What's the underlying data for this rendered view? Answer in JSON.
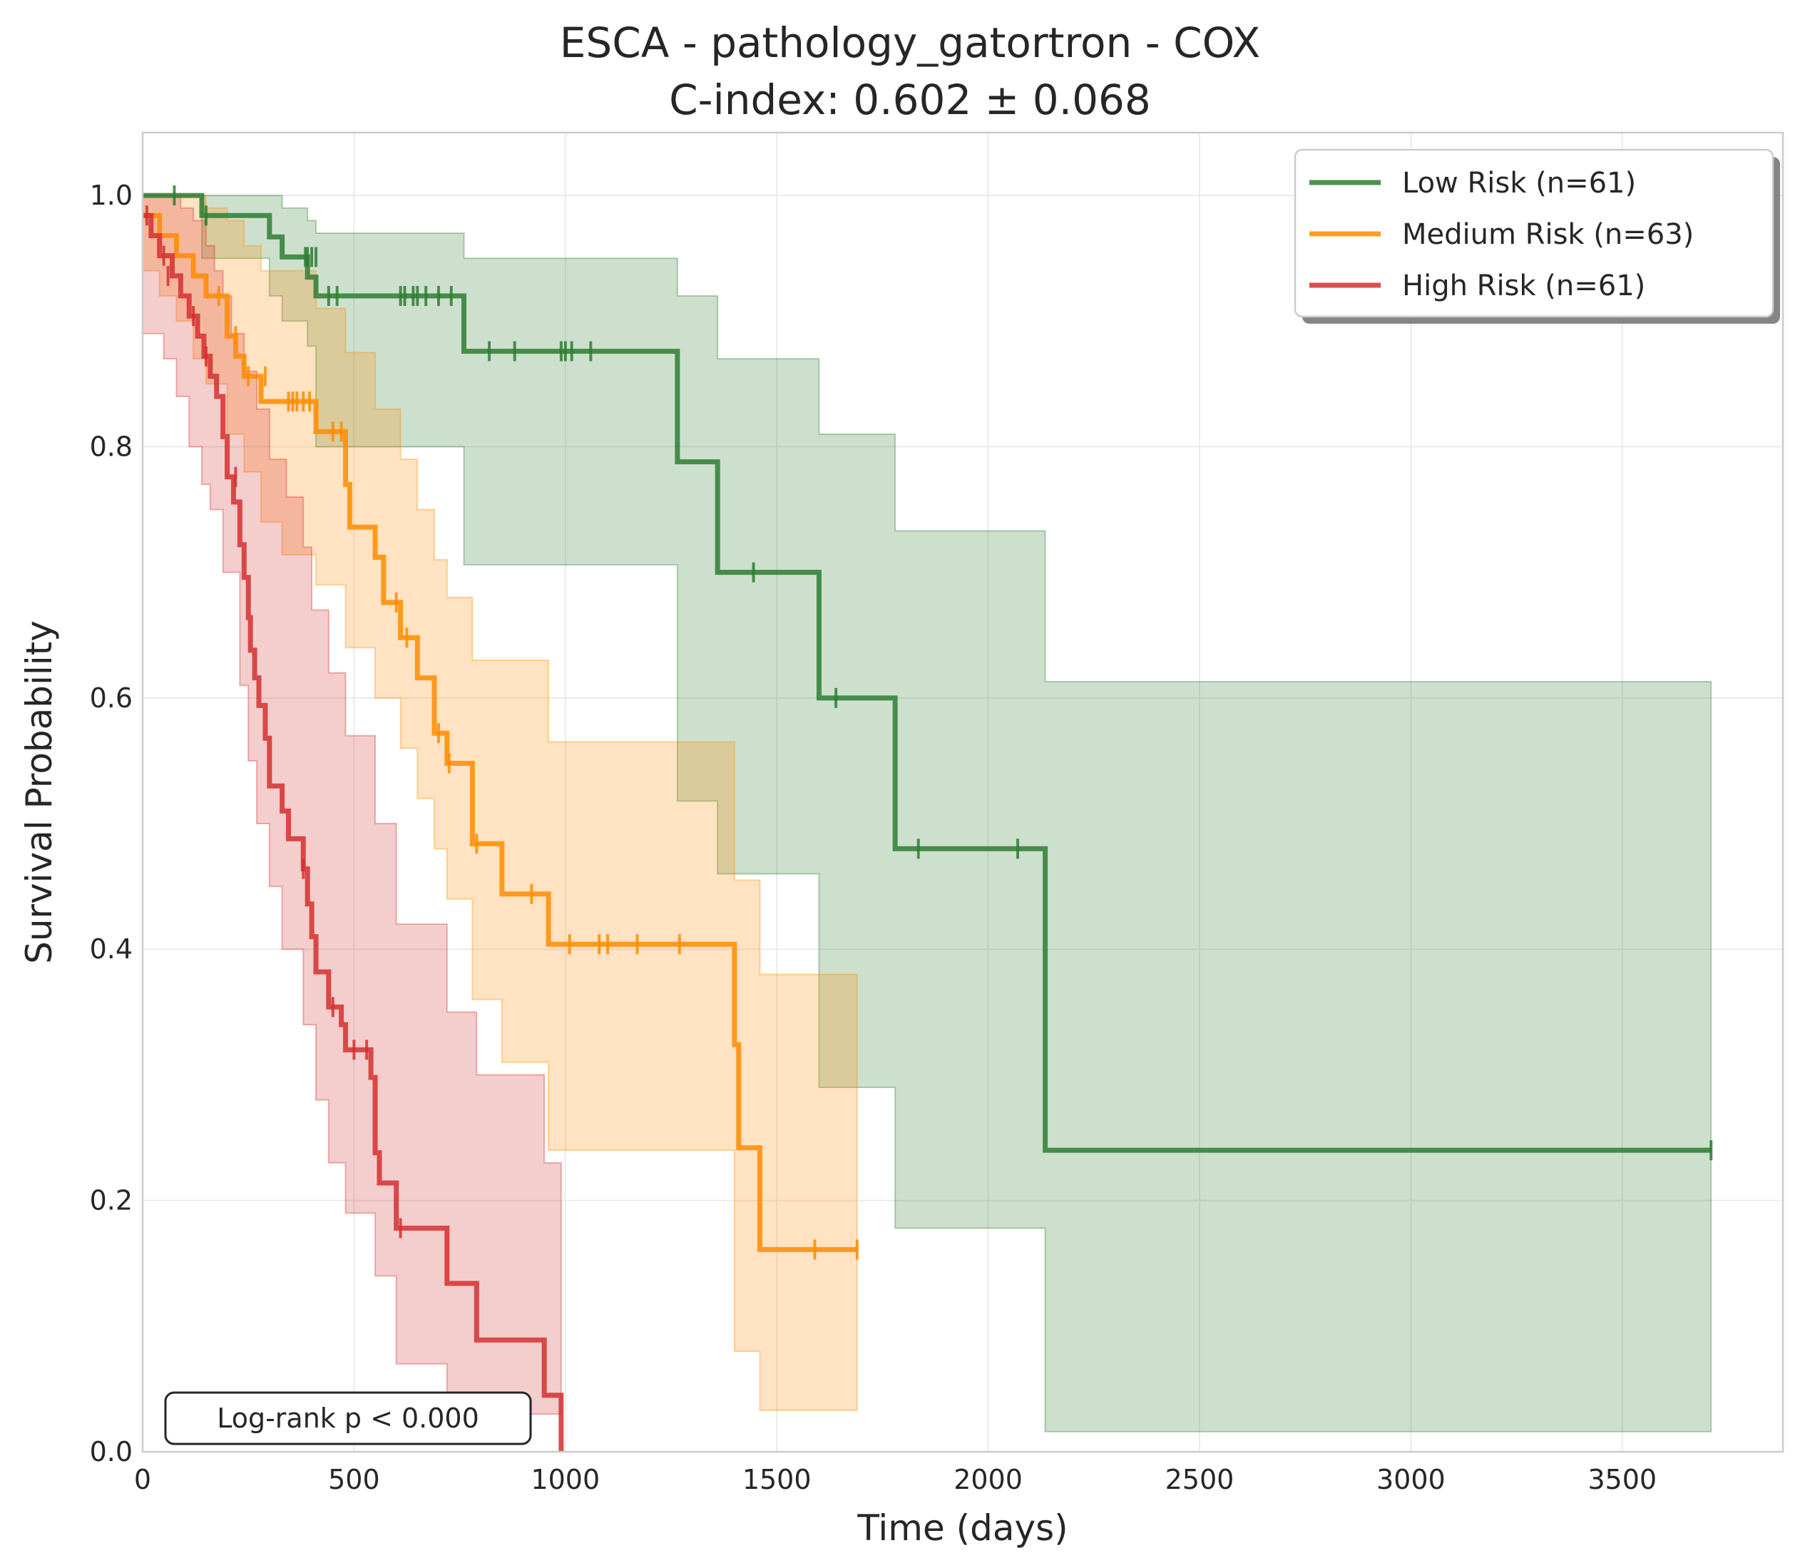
{
  "chart_data": {
    "type": "line",
    "title": "ESCA - pathology_gatortron - COX",
    "subtitle": "C-index: 0.602 ± 0.068",
    "xlabel": "Time (days)",
    "ylabel": "Survival Probability",
    "xlim": [
      0,
      3880
    ],
    "ylim": [
      0,
      1.05
    ],
    "xticks": [
      0,
      500,
      1000,
      1500,
      2000,
      2500,
      3000,
      3500
    ],
    "yticks": [
      0.0,
      0.2,
      0.4,
      0.6,
      0.8,
      1.0
    ],
    "xtick_labels": [
      "0",
      "500",
      "1000",
      "1500",
      "2000",
      "2500",
      "3000",
      "3500"
    ],
    "ytick_labels": [
      "0.0",
      "0.2",
      "0.4",
      "0.6",
      "0.8",
      "1.0"
    ],
    "grid": true,
    "legend_position": "top-right",
    "annotation": "Log-rank p < 0.000",
    "series": [
      {
        "name": "Low Risk (n=61)",
        "color": "#2e7d32",
        "steps": [
          [
            0,
            1.0
          ],
          [
            140,
            0.984
          ],
          [
            300,
            0.967
          ],
          [
            330,
            0.951
          ],
          [
            390,
            0.935
          ],
          [
            410,
            0.92
          ],
          [
            760,
            0.876
          ],
          [
            1265,
            0.788
          ],
          [
            1360,
            0.7
          ],
          [
            1600,
            0.6
          ],
          [
            1780,
            0.48
          ],
          [
            2135,
            0.24
          ],
          [
            3710,
            0.24
          ]
        ],
        "ci_lower": [
          [
            0,
            1.0
          ],
          [
            140,
            0.95
          ],
          [
            300,
            0.92
          ],
          [
            330,
            0.9
          ],
          [
            390,
            0.88
          ],
          [
            410,
            0.8
          ],
          [
            760,
            0.706
          ],
          [
            1265,
            0.518
          ],
          [
            1360,
            0.46
          ],
          [
            1600,
            0.29
          ],
          [
            1780,
            0.178
          ],
          [
            2135,
            0.016
          ],
          [
            3710,
            0.016
          ]
        ],
        "ci_upper": [
          [
            0,
            1.0
          ],
          [
            140,
            1.0
          ],
          [
            300,
            1.0
          ],
          [
            330,
            0.99
          ],
          [
            390,
            0.98
          ],
          [
            410,
            0.97
          ],
          [
            760,
            0.95
          ],
          [
            1265,
            0.92
          ],
          [
            1360,
            0.87
          ],
          [
            1600,
            0.81
          ],
          [
            1780,
            0.733
          ],
          [
            2135,
            0.613
          ],
          [
            3710,
            0.613
          ]
        ],
        "censored": [
          [
            75,
            1.0
          ],
          [
            150,
            0.984
          ],
          [
            385,
            0.951
          ],
          [
            390,
            0.951
          ],
          [
            400,
            0.951
          ],
          [
            410,
            0.951
          ],
          [
            440,
            0.92
          ],
          [
            460,
            0.92
          ],
          [
            610,
            0.92
          ],
          [
            620,
            0.92
          ],
          [
            640,
            0.92
          ],
          [
            650,
            0.92
          ],
          [
            670,
            0.92
          ],
          [
            700,
            0.92
          ],
          [
            730,
            0.92
          ],
          [
            820,
            0.876
          ],
          [
            880,
            0.876
          ],
          [
            990,
            0.876
          ],
          [
            1000,
            0.876
          ],
          [
            1015,
            0.876
          ],
          [
            1060,
            0.876
          ],
          [
            1445,
            0.7
          ],
          [
            1640,
            0.6
          ],
          [
            1835,
            0.48
          ],
          [
            2070,
            0.48
          ],
          [
            3710,
            0.24
          ]
        ]
      },
      {
        "name": "Medium Risk (n=63)",
        "color": "#ff8c00",
        "steps": [
          [
            0,
            0.984
          ],
          [
            40,
            0.968
          ],
          [
            80,
            0.952
          ],
          [
            120,
            0.936
          ],
          [
            150,
            0.92
          ],
          [
            200,
            0.888
          ],
          [
            220,
            0.872
          ],
          [
            240,
            0.856
          ],
          [
            280,
            0.836
          ],
          [
            410,
            0.812
          ],
          [
            480,
            0.77
          ],
          [
            490,
            0.736
          ],
          [
            550,
            0.712
          ],
          [
            570,
            0.676
          ],
          [
            610,
            0.648
          ],
          [
            650,
            0.616
          ],
          [
            690,
            0.572
          ],
          [
            720,
            0.548
          ],
          [
            780,
            0.484
          ],
          [
            850,
            0.444
          ],
          [
            960,
            0.404
          ],
          [
            1400,
            0.324
          ],
          [
            1410,
            0.242
          ],
          [
            1460,
            0.161
          ],
          [
            1690,
            0.161
          ]
        ],
        "ci_lower": [
          [
            0,
            0.94
          ],
          [
            40,
            0.92
          ],
          [
            80,
            0.9
          ],
          [
            120,
            0.87
          ],
          [
            150,
            0.85
          ],
          [
            200,
            0.81
          ],
          [
            240,
            0.78
          ],
          [
            280,
            0.74
          ],
          [
            330,
            0.714
          ],
          [
            410,
            0.69
          ],
          [
            480,
            0.64
          ],
          [
            550,
            0.6
          ],
          [
            610,
            0.56
          ],
          [
            650,
            0.52
          ],
          [
            690,
            0.48
          ],
          [
            720,
            0.44
          ],
          [
            780,
            0.36
          ],
          [
            850,
            0.31
          ],
          [
            960,
            0.24
          ],
          [
            1400,
            0.08
          ],
          [
            1460,
            0.033
          ],
          [
            1690,
            0.033
          ]
        ],
        "ci_upper": [
          [
            0,
            1.0
          ],
          [
            120,
            1.0
          ],
          [
            150,
            0.99
          ],
          [
            200,
            0.98
          ],
          [
            240,
            0.96
          ],
          [
            280,
            0.94
          ],
          [
            410,
            0.91
          ],
          [
            480,
            0.875
          ],
          [
            550,
            0.83
          ],
          [
            610,
            0.79
          ],
          [
            650,
            0.75
          ],
          [
            690,
            0.71
          ],
          [
            720,
            0.68
          ],
          [
            780,
            0.63
          ],
          [
            960,
            0.565
          ],
          [
            1400,
            0.455
          ],
          [
            1460,
            0.38
          ],
          [
            1690,
            0.38
          ]
        ],
        "censored": [
          [
            180,
            0.92
          ],
          [
            220,
            0.888
          ],
          [
            250,
            0.856
          ],
          [
            290,
            0.856
          ],
          [
            345,
            0.836
          ],
          [
            355,
            0.836
          ],
          [
            365,
            0.836
          ],
          [
            380,
            0.836
          ],
          [
            395,
            0.836
          ],
          [
            450,
            0.812
          ],
          [
            470,
            0.812
          ],
          [
            600,
            0.676
          ],
          [
            625,
            0.648
          ],
          [
            700,
            0.572
          ],
          [
            725,
            0.548
          ],
          [
            790,
            0.484
          ],
          [
            920,
            0.444
          ],
          [
            1010,
            0.404
          ],
          [
            1080,
            0.404
          ],
          [
            1100,
            0.404
          ],
          [
            1170,
            0.404
          ],
          [
            1270,
            0.404
          ],
          [
            1590,
            0.161
          ],
          [
            1690,
            0.161
          ]
        ]
      },
      {
        "name": "High Risk (n=61)",
        "color": "#d32f2f",
        "steps": [
          [
            0,
            0.984
          ],
          [
            20,
            0.968
          ],
          [
            40,
            0.952
          ],
          [
            70,
            0.936
          ],
          [
            90,
            0.92
          ],
          [
            110,
            0.904
          ],
          [
            130,
            0.888
          ],
          [
            145,
            0.872
          ],
          [
            160,
            0.856
          ],
          [
            175,
            0.84
          ],
          [
            190,
            0.808
          ],
          [
            200,
            0.776
          ],
          [
            215,
            0.756
          ],
          [
            230,
            0.722
          ],
          [
            240,
            0.696
          ],
          [
            250,
            0.664
          ],
          [
            255,
            0.638
          ],
          [
            265,
            0.616
          ],
          [
            275,
            0.594
          ],
          [
            290,
            0.568
          ],
          [
            300,
            0.53
          ],
          [
            330,
            0.51
          ],
          [
            345,
            0.488
          ],
          [
            380,
            0.464
          ],
          [
            390,
            0.436
          ],
          [
            400,
            0.41
          ],
          [
            410,
            0.382
          ],
          [
            440,
            0.354
          ],
          [
            470,
            0.34
          ],
          [
            480,
            0.32
          ],
          [
            540,
            0.298
          ],
          [
            550,
            0.238
          ],
          [
            560,
            0.214
          ],
          [
            600,
            0.178
          ],
          [
            720,
            0.134
          ],
          [
            790,
            0.089
          ],
          [
            950,
            0.045
          ],
          [
            990,
            0.0
          ]
        ],
        "ci_lower": [
          [
            0,
            0.89
          ],
          [
            50,
            0.87
          ],
          [
            80,
            0.84
          ],
          [
            110,
            0.8
          ],
          [
            140,
            0.77
          ],
          [
            160,
            0.75
          ],
          [
            190,
            0.7
          ],
          [
            230,
            0.61
          ],
          [
            250,
            0.55
          ],
          [
            270,
            0.5
          ],
          [
            300,
            0.45
          ],
          [
            330,
            0.4
          ],
          [
            380,
            0.34
          ],
          [
            410,
            0.28
          ],
          [
            440,
            0.23
          ],
          [
            480,
            0.19
          ],
          [
            550,
            0.14
          ],
          [
            600,
            0.07
          ],
          [
            720,
            0.03
          ],
          [
            990,
            0.03
          ]
        ],
        "ci_upper": [
          [
            0,
            1.0
          ],
          [
            60,
            1.0
          ],
          [
            90,
            0.99
          ],
          [
            120,
            0.98
          ],
          [
            150,
            0.96
          ],
          [
            170,
            0.94
          ],
          [
            190,
            0.92
          ],
          [
            210,
            0.89
          ],
          [
            240,
            0.86
          ],
          [
            270,
            0.83
          ],
          [
            300,
            0.79
          ],
          [
            340,
            0.76
          ],
          [
            380,
            0.72
          ],
          [
            400,
            0.67
          ],
          [
            440,
            0.62
          ],
          [
            480,
            0.57
          ],
          [
            550,
            0.5
          ],
          [
            600,
            0.42
          ],
          [
            720,
            0.35
          ],
          [
            790,
            0.3
          ],
          [
            950,
            0.23
          ],
          [
            990,
            0.18
          ]
        ],
        "censored": [
          [
            10,
            0.984
          ],
          [
            50,
            0.952
          ],
          [
            60,
            0.936
          ],
          [
            120,
            0.904
          ],
          [
            150,
            0.872
          ],
          [
            220,
            0.776
          ],
          [
            380,
            0.464
          ],
          [
            450,
            0.354
          ],
          [
            500,
            0.32
          ],
          [
            530,
            0.32
          ],
          [
            610,
            0.178
          ]
        ]
      }
    ]
  }
}
